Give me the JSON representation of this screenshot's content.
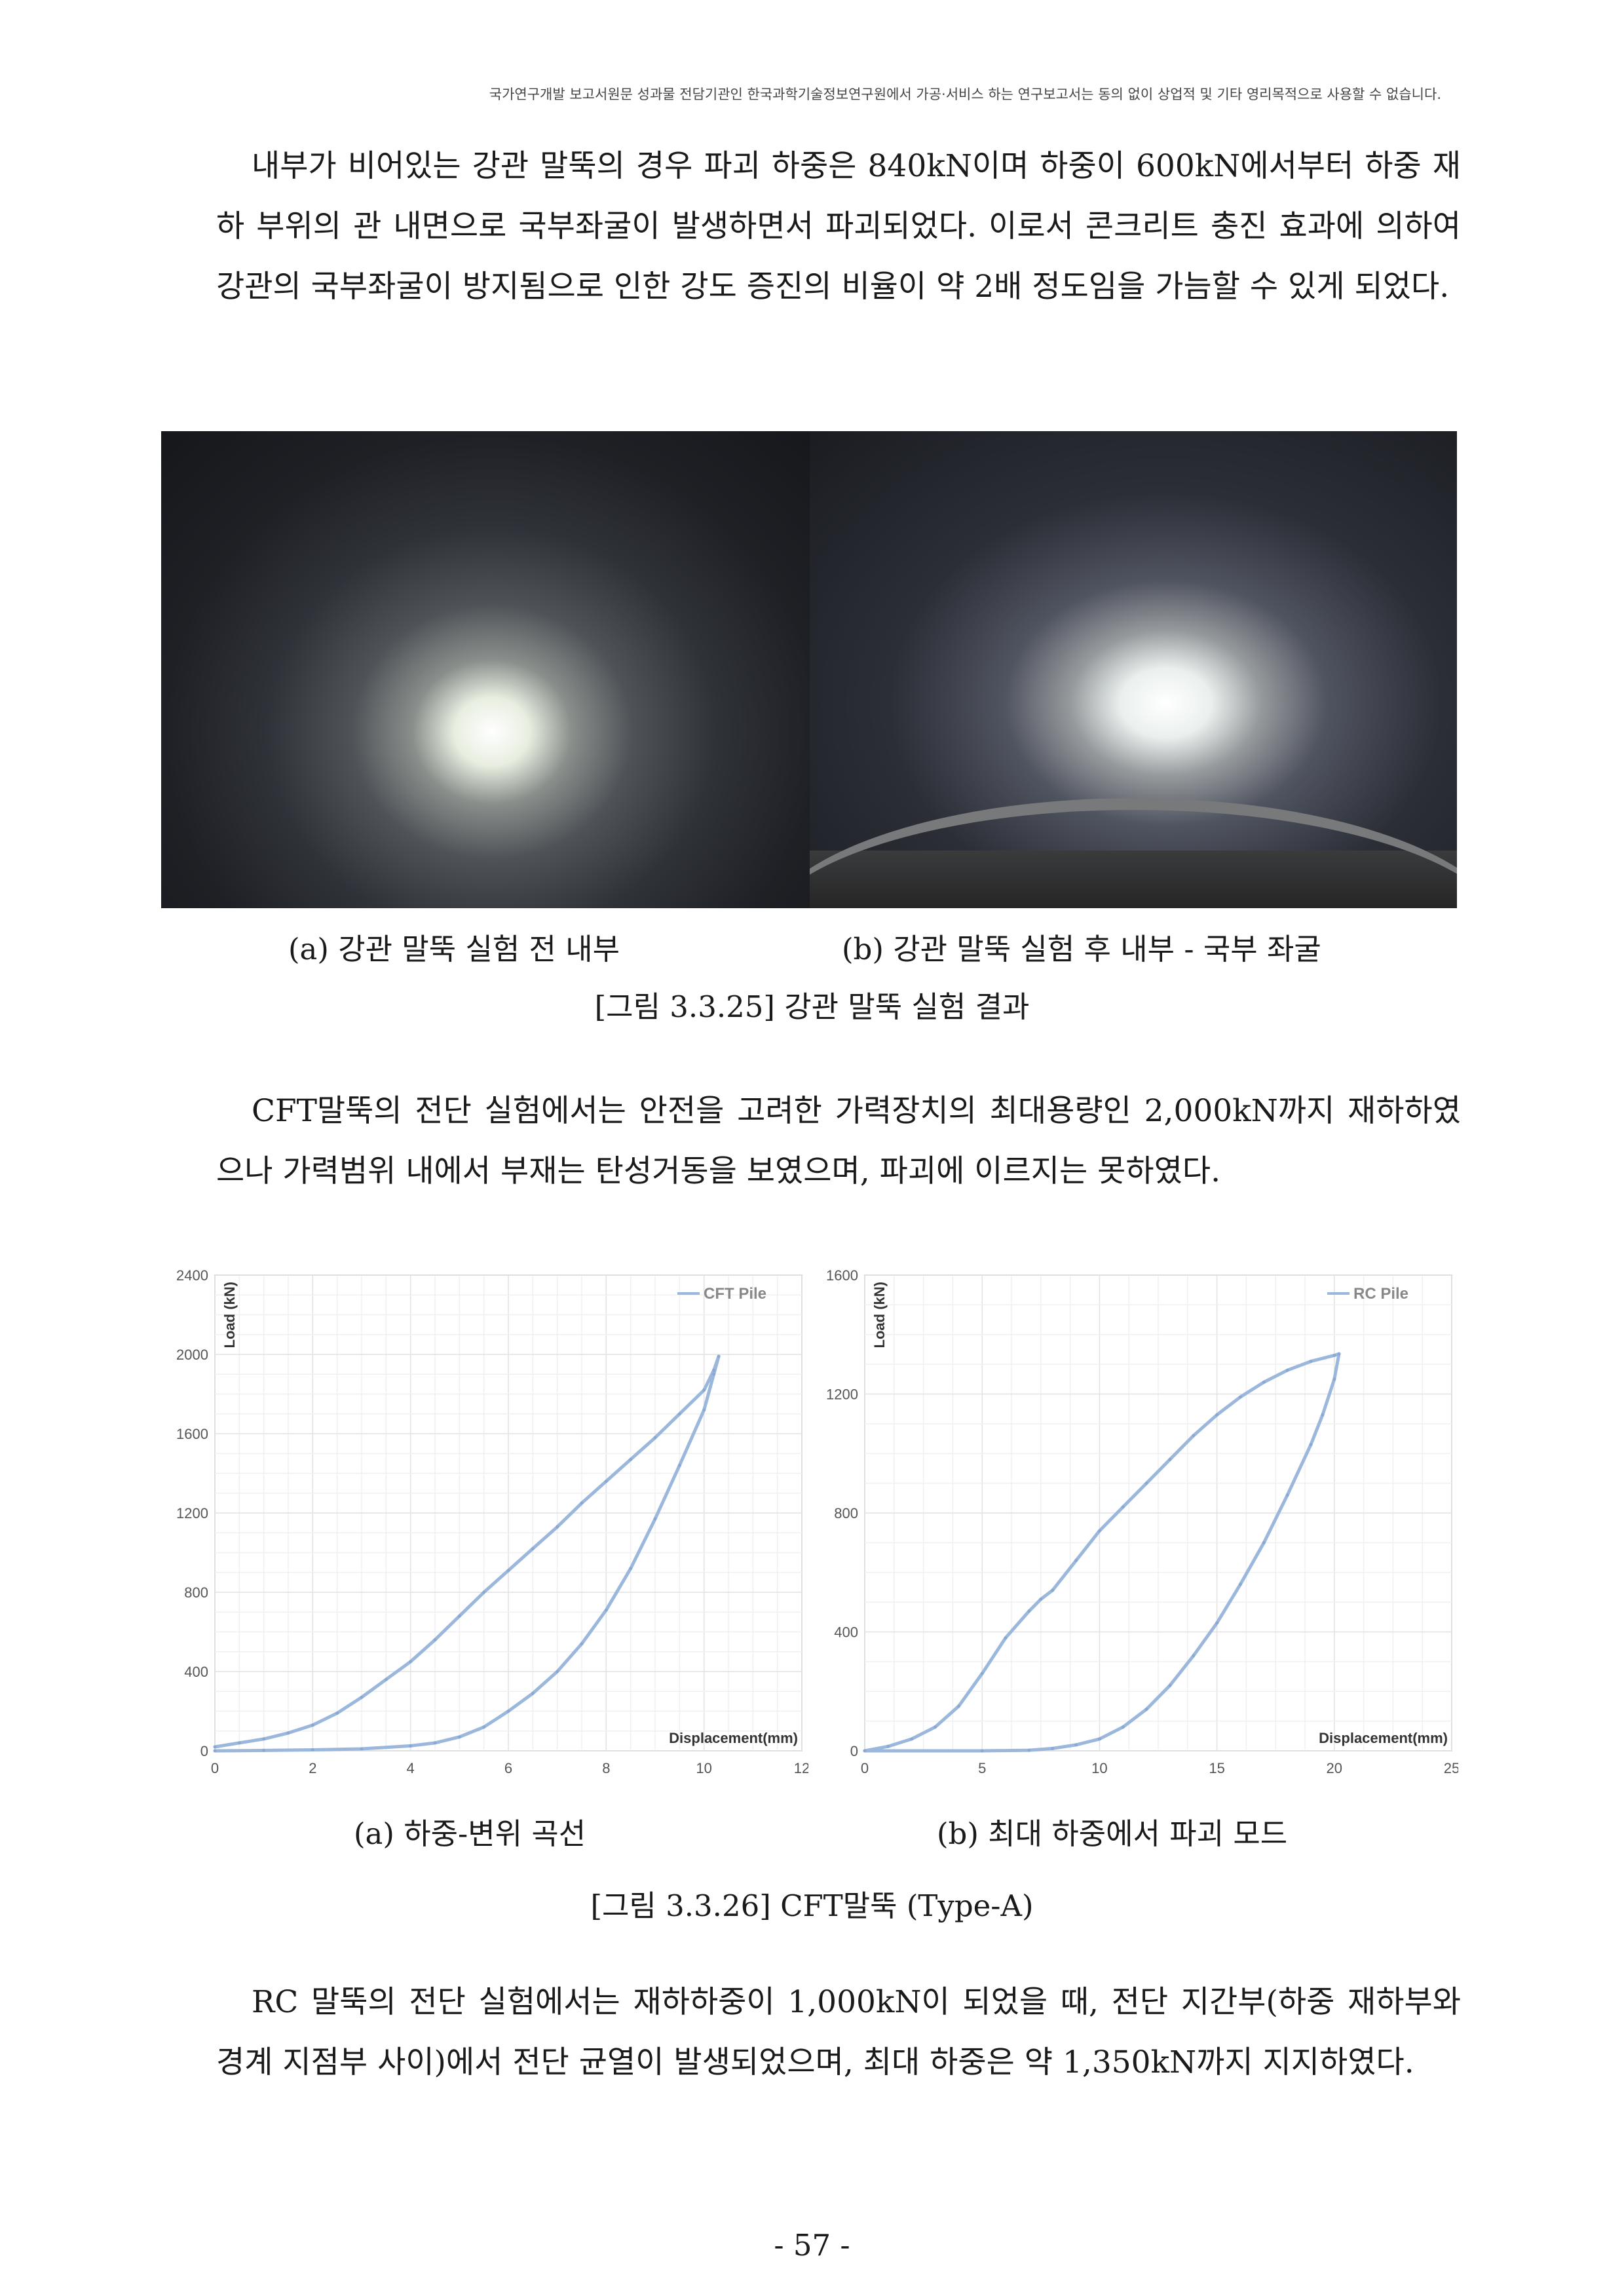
{
  "header_notice": "국가연구개발 보고서원문 성과물 전담기관인 한국과학기술정보연구원에서 가공·서비스 하는 연구보고서는 동의 없이 상업적 및 기타 영리목적으로 사용할 수 없습니다.",
  "paragraphs": [
    "내부가 비어있는 강관 말뚝의 경우 파괴 하중은 840kN이며 하중이 600kN에서부터 하중 재하 부위의 관 내면으로 국부좌굴이 발생하면서 파괴되었다. 이로서 콘크리트 충진 효과에 의하여 강관의 국부좌굴이 방지됨으로 인한 강도 증진의 비율이 약 2배 정도임을 가늠할 수 있게 되었다.",
    "CFT말뚝의 전단 실험에서는 안전을 고려한 가력장치의 최대용량인 2,000kN까지 재하하였으나 가력범위 내에서 부재는 탄성거동을 보였으며, 파괴에 이르지는 못하였다.",
    "RC 말뚝의 전단 실험에서는 재하하중이 1,000kN이 되었을 때, 전단 지간부(하중 재하부와 경계 지점부 사이)에서 전단 균열이 발생되었으며, 최대 하중은 약 1,350kN까지 지지하였다."
  ],
  "figure_25": {
    "caption_a": "(a) 강관 말뚝 실험 전 내부",
    "caption_b": "(b) 강관 말뚝 실험 후 내부 - 국부 좌굴",
    "title": "[그림 3.3.25] 강관 말뚝 실험 결과"
  },
  "figure_26": {
    "caption_a": "(a) 하중-변위 곡선",
    "caption_b": "(b) 최대 하중에서 파괴 모드",
    "title": "[그림 3.3.26] CFT말뚝 (Type-A)"
  },
  "page_number": "- 57 -",
  "chart_data": [
    {
      "type": "line",
      "legend": "CFT Pile",
      "legend_position": "top-right",
      "xlabel": "Displacement(mm)",
      "ylabel": "Load (kN)",
      "xlim": [
        0,
        12
      ],
      "ylim": [
        0,
        2400
      ],
      "xticks": [
        "0",
        "2",
        "4",
        "6",
        "8",
        "10",
        "12"
      ],
      "yticks": [
        "0",
        "400",
        "800",
        "1200",
        "1600",
        "2000",
        "2400"
      ],
      "grid": true,
      "color": "#9bb7dc",
      "series": [
        {
          "name": "CFT Pile",
          "x": [
            0,
            0.5,
            1,
            1.5,
            2,
            2.5,
            3,
            3.5,
            4,
            4.5,
            5,
            5.5,
            6,
            6.5,
            7,
            7.5,
            8,
            8.5,
            9,
            9.5,
            10,
            10.2,
            10.3,
            10.2,
            10.0,
            9.5,
            9.0,
            8.5,
            8.0,
            7.5,
            7.0,
            6.5,
            6.0,
            5.5,
            5.0,
            4.5,
            4.0,
            3.0,
            2.0,
            1.0,
            0
          ],
          "y": [
            20,
            40,
            60,
            90,
            130,
            190,
            270,
            360,
            450,
            560,
            680,
            800,
            910,
            1020,
            1130,
            1250,
            1360,
            1470,
            1580,
            1700,
            1820,
            1920,
            1990,
            1900,
            1720,
            1440,
            1170,
            920,
            710,
            540,
            400,
            290,
            200,
            120,
            70,
            40,
            25,
            10,
            5,
            2,
            0
          ]
        }
      ]
    },
    {
      "type": "line",
      "legend": "RC Pile",
      "legend_position": "top-right",
      "xlabel": "Displacement(mm)",
      "ylabel": "Load (kN)",
      "xlim": [
        0,
        25
      ],
      "ylim": [
        0,
        1600
      ],
      "xticks": [
        "0",
        "5",
        "10",
        "15",
        "20",
        "25"
      ],
      "yticks": [
        "0",
        "400",
        "800",
        "1200",
        "1600"
      ],
      "grid": true,
      "color": "#9bb7dc",
      "series": [
        {
          "name": "RC Pile",
          "x": [
            0,
            1,
            2,
            3,
            4,
            5,
            6,
            7,
            7.5,
            8,
            9,
            10,
            11,
            12,
            13,
            14,
            15,
            16,
            17,
            18,
            19,
            20,
            20.2,
            20.0,
            19.5,
            19.0,
            18.0,
            17.0,
            16.0,
            15.0,
            14.0,
            13.0,
            12.0,
            11.0,
            10.0,
            9.0,
            8.0,
            7.0,
            5.0,
            0
          ],
          "y": [
            0,
            15,
            40,
            80,
            150,
            260,
            380,
            470,
            510,
            540,
            640,
            740,
            820,
            900,
            980,
            1060,
            1130,
            1190,
            1240,
            1280,
            1310,
            1330,
            1335,
            1250,
            1130,
            1030,
            860,
            700,
            560,
            430,
            320,
            220,
            140,
            80,
            40,
            20,
            8,
            2,
            0,
            0
          ]
        }
      ]
    }
  ]
}
